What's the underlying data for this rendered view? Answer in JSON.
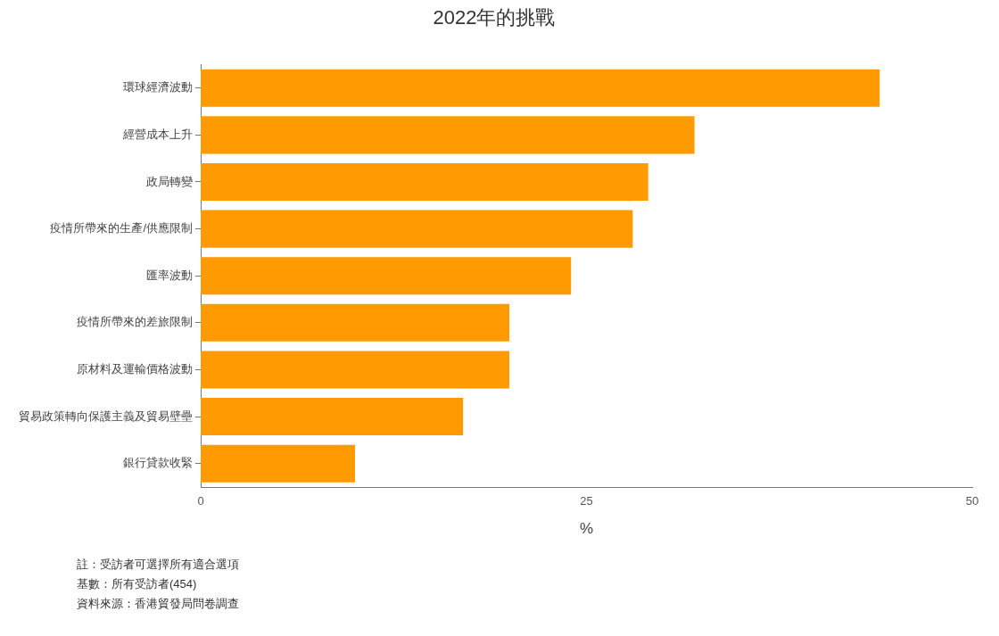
{
  "chart_data": {
    "type": "bar",
    "orientation": "horizontal",
    "title": "2022年的挑戰",
    "xlabel": "%",
    "categories": [
      "環球經濟波動",
      "經營成本上升",
      "政局轉變",
      "疫情所帶來的生產/供應限制",
      "匯率波動",
      "疫情所帶來的差旅限制",
      "原材料及運輸價格波動",
      "貿易政策轉向保護主義及貿易壁壘",
      "銀行貸款收緊"
    ],
    "values": [
      44,
      32,
      29,
      28,
      24,
      20,
      20,
      17,
      10
    ],
    "color": "#ff9a00",
    "xlim": [
      0,
      50
    ],
    "xticks": [
      0,
      25,
      50
    ],
    "grid": false,
    "legend": false,
    "annotations": [
      "註：受訪者可選擇所有適合選項",
      "基數：所有受訪者(454)",
      "資料來源：香港貿發局問卷調查"
    ]
  }
}
